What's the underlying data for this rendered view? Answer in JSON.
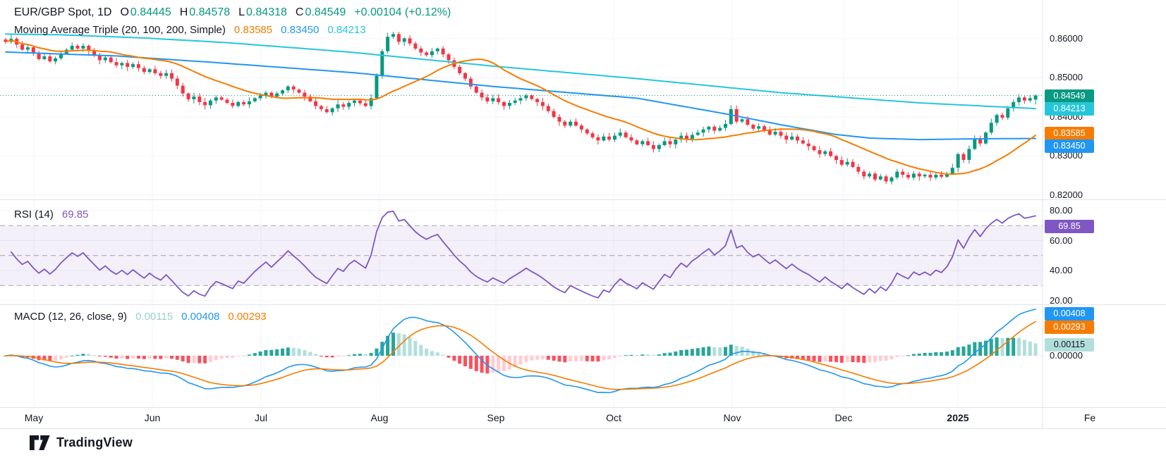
{
  "legend": {
    "title": "EUR/GBP Spot, 1D",
    "ohlc": [
      {
        "label": "O",
        "value": "0.84445"
      },
      {
        "label": "H",
        "value": "0.84578"
      },
      {
        "label": "L",
        "value": "0.84318"
      },
      {
        "label": "C",
        "value": "0.84549"
      }
    ],
    "change": "+0.00104 (+0.12%)",
    "ma": {
      "label": "Moving Average Triple (20, 100, 200, Simple)",
      "values": [
        "0.83585",
        "0.83450",
        "0.84213"
      ]
    },
    "rsi": {
      "label": "RSI (14)",
      "value": "69.85"
    },
    "macd": {
      "label": "MACD (12, 26, close, 9)",
      "values": [
        "0.00115",
        "0.00408",
        "0.00293"
      ]
    }
  },
  "axes": {
    "price_labels": [
      "0.86000",
      "0.85000",
      "0.84000",
      "0.83000",
      "0.82000"
    ],
    "rsi_labels": [
      "80.00",
      "60.00",
      "40.00",
      "20.00"
    ],
    "macd_labels": [
      "0.00000"
    ],
    "time_labels": [
      "May",
      "Jun",
      "Jul",
      "Aug",
      "Sep",
      "Oct",
      "Nov",
      "Dec",
      "2025",
      "Fe"
    ],
    "badges": {
      "price": [
        {
          "text": "0.84549",
          "bg": "#089981",
          "fg": "#ffffff"
        },
        {
          "text": "0.84213",
          "bg": "#26C6DA",
          "fg": "#ffffff"
        },
        {
          "text": "0.83585",
          "bg": "#F57C00",
          "fg": "#ffffff"
        },
        {
          "text": "0.83450",
          "bg": "#2196F3",
          "fg": "#ffffff"
        }
      ],
      "rsi": [
        {
          "text": "69.85",
          "bg": "#7E57C2",
          "fg": "#ffffff"
        }
      ],
      "macd": [
        {
          "text": "0.00408",
          "bg": "#2196F3",
          "fg": "#ffffff"
        },
        {
          "text": "0.00293",
          "bg": "#F57C00",
          "fg": "#ffffff"
        },
        {
          "text": "0.00115",
          "bg": "#B2DFDB",
          "fg": "#131722"
        }
      ]
    }
  },
  "footer": {
    "brand": "TradingView"
  },
  "colors": {
    "up": "#089981",
    "down": "#F23645",
    "ma20": "#F57C00",
    "ma100": "#2196F3",
    "ma200": "#26C6DA",
    "rsi_line": "#7E57C2",
    "rsi_band": "rgba(126,87,194,0.09)",
    "macd_line": "#2196F3",
    "macd_signal": "#F57C00",
    "hist_grow_above": "#26A69A",
    "hist_fall_above": "#B2DFDB",
    "hist_grow_below": "#FFCDD2",
    "hist_fall_below": "#F7525F",
    "grid": "#F0F3FA",
    "divider": "#E0E3EB",
    "text": "#131722",
    "close_line": "#089981"
  },
  "chart_data": {
    "type": "candlestick",
    "title": "EUR/GBP Spot, 1D",
    "symbol": "EUR/GBP",
    "interval": "1D",
    "current": {
      "open": 0.84445,
      "high": 0.84578,
      "low": 0.84318,
      "close": 0.84549,
      "change": 0.00104,
      "change_pct": 0.12
    },
    "price_axis_range": [
      0.819,
      0.8699
    ],
    "price_gridlines": [
      0.86,
      0.85,
      0.84,
      0.83,
      0.82
    ],
    "time_ticks": [
      "May",
      "Jun",
      "Jul",
      "Aug",
      "Sep",
      "Oct",
      "Nov",
      "Dec",
      "2025",
      "Fe"
    ],
    "closes": [
      0.8592,
      0.86,
      0.8585,
      0.8572,
      0.8578,
      0.8562,
      0.8548,
      0.8555,
      0.8542,
      0.855,
      0.8562,
      0.8572,
      0.8582,
      0.8575,
      0.8582,
      0.857,
      0.8558,
      0.8545,
      0.8552,
      0.854,
      0.8532,
      0.8538,
      0.8528,
      0.8535,
      0.8525,
      0.8515,
      0.8522,
      0.8512,
      0.8505,
      0.8512,
      0.8498,
      0.848,
      0.846,
      0.8445,
      0.8452,
      0.8438,
      0.843,
      0.8442,
      0.845,
      0.8444,
      0.8436,
      0.8428,
      0.8438,
      0.8432,
      0.844,
      0.8448,
      0.8455,
      0.8462,
      0.8452,
      0.846,
      0.8468,
      0.8478,
      0.847,
      0.8462,
      0.8452,
      0.844,
      0.8428,
      0.842,
      0.8412,
      0.8422,
      0.8432,
      0.8426,
      0.8436,
      0.8442,
      0.8435,
      0.8428,
      0.8448,
      0.8505,
      0.8568,
      0.8605,
      0.8612,
      0.8592,
      0.8601,
      0.8588,
      0.8575,
      0.8565,
      0.8558,
      0.8568,
      0.8575,
      0.856,
      0.8545,
      0.8528,
      0.8512,
      0.8498,
      0.8478,
      0.8462,
      0.845,
      0.844,
      0.8448,
      0.8438,
      0.8428,
      0.8436,
      0.8442,
      0.8448,
      0.8455,
      0.8446,
      0.8438,
      0.8428,
      0.8415,
      0.84,
      0.8388,
      0.8378,
      0.8388,
      0.8378,
      0.8368,
      0.8358,
      0.8348,
      0.834,
      0.835,
      0.8342,
      0.8352,
      0.836,
      0.8348,
      0.834,
      0.833,
      0.8338,
      0.8328,
      0.8318,
      0.8328,
      0.8338,
      0.833,
      0.8342,
      0.8352,
      0.8344,
      0.8354,
      0.836,
      0.8368,
      0.8375,
      0.8365,
      0.8372,
      0.8382,
      0.842,
      0.8388,
      0.8394,
      0.838,
      0.837,
      0.8376,
      0.8365,
      0.8355,
      0.8362,
      0.8352,
      0.8342,
      0.835,
      0.834,
      0.8332,
      0.8325,
      0.8315,
      0.8305,
      0.8312,
      0.83,
      0.829,
      0.8278,
      0.8285,
      0.8272,
      0.826,
      0.8248,
      0.8255,
      0.824,
      0.8248,
      0.8235,
      0.8245,
      0.826,
      0.8252,
      0.8245,
      0.8255,
      0.8248,
      0.8252,
      0.8245,
      0.8252,
      0.8247,
      0.8255,
      0.827,
      0.8305,
      0.829,
      0.8318,
      0.8345,
      0.8332,
      0.836,
      0.8385,
      0.8405,
      0.8398,
      0.8422,
      0.8438,
      0.845,
      0.8442,
      0.8448,
      0.84549
    ],
    "indicators": {
      "ma_triple": {
        "type": "sma",
        "periods": [
          20,
          100,
          200
        ],
        "last_values": [
          0.83585,
          0.8345,
          0.84213
        ],
        "ma200_points": [
          [
            0,
            0.8612
          ],
          [
            10,
            0.861
          ],
          [
            25,
            0.8602
          ],
          [
            40,
            0.859
          ],
          [
            62,
            0.8566
          ],
          [
            88,
            0.853
          ],
          [
            114,
            0.8498
          ],
          [
            140,
            0.8462
          ],
          [
            165,
            0.8436
          ],
          [
            186,
            0.84213
          ]
        ],
        "ma100_points": [
          [
            0,
            0.8566
          ],
          [
            20,
            0.8556
          ],
          [
            37,
            0.854
          ],
          [
            63,
            0.8513
          ],
          [
            88,
            0.8478
          ],
          [
            114,
            0.8448
          ],
          [
            130,
            0.8408
          ],
          [
            140,
            0.838
          ],
          [
            150,
            0.8355
          ],
          [
            156,
            0.8346
          ],
          [
            165,
            0.8342
          ],
          [
            175,
            0.8344
          ],
          [
            186,
            0.8345
          ]
        ]
      },
      "rsi": {
        "period": 14,
        "last": 69.85,
        "overbought": 70,
        "midline": 50,
        "oversold": 30,
        "axis_range": [
          15,
          85
        ]
      },
      "macd": {
        "fast": 12,
        "slow": 26,
        "source": "close",
        "signal_period": 9,
        "last_macd": 0.00408,
        "last_signal": 0.00293,
        "last_hist": 0.00115
      }
    }
  }
}
